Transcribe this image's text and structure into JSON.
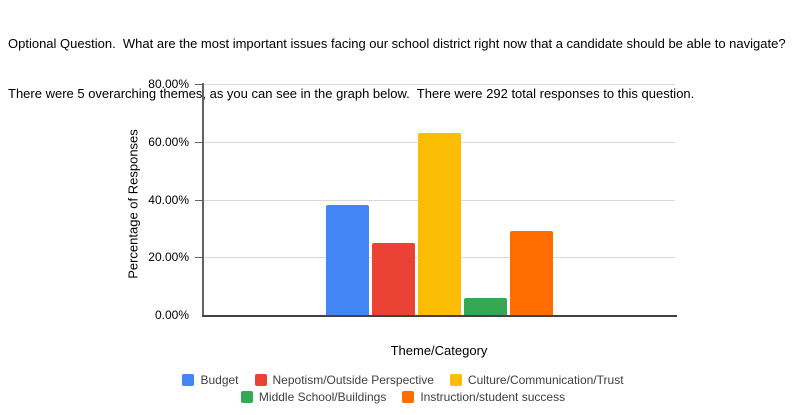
{
  "header": {
    "line1": "Optional Question.  What are the most important issues facing our school district right now that a candidate should be able to navigate?",
    "line2": "There were 5 overarching themes, as you can see in the graph below.  There were 292 total responses to this question."
  },
  "chart_data": {
    "type": "bar",
    "title": "",
    "xlabel": "Theme/Category",
    "ylabel": "Percentage of Responses",
    "ylim": [
      0,
      80
    ],
    "yticks": [
      "0.00%",
      "20.00%",
      "40.00%",
      "60.00%",
      "80.00%"
    ],
    "grid": true,
    "legend_position": "bottom",
    "total_responses": 292,
    "series": [
      {
        "name": "Budget",
        "value": 38,
        "color": "#4285F4"
      },
      {
        "name": "Nepotism/Outside Perspective",
        "value": 25,
        "color": "#EA4335"
      },
      {
        "name": "Culture/Communication/Trust",
        "value": 63,
        "color": "#FBBC04"
      },
      {
        "name": "Middle School/Buildings",
        "value": 6,
        "color": "#34A853"
      },
      {
        "name": "Instruction/student success",
        "value": 29,
        "color": "#FF6D00"
      }
    ]
  }
}
